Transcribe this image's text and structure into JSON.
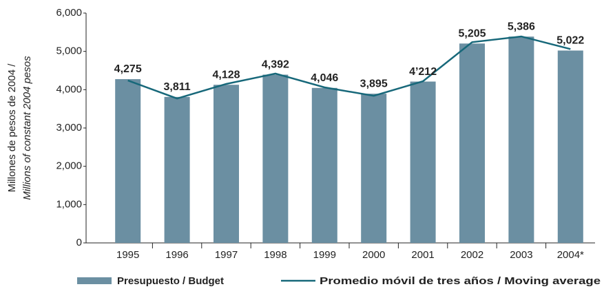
{
  "chart_data": {
    "type": "bar",
    "ylabel": [
      "Millones de pesos de 2004 /",
      "Millions of constant 2004 pesos"
    ],
    "categories": [
      "1995",
      "1996",
      "1997",
      "1998",
      "1999",
      "2000",
      "2001",
      "2002",
      "2003",
      "2004*"
    ],
    "series": [
      {
        "name": "Presupuesto / Budget",
        "type": "bar",
        "color": "#6b8fa2",
        "values": [
          4275,
          3811,
          4128,
          4392,
          4046,
          3895,
          4212,
          5205,
          5386,
          5022
        ],
        "value_labels": [
          "4,275",
          "3,811",
          "4,128",
          "4,392",
          "4,046",
          "3,895",
          "4’212",
          "5,205",
          "5,386",
          "5,022"
        ]
      },
      {
        "name": "Promedio móvil de tres años / Moving average",
        "type": "line",
        "color": "#17687a",
        "values": [
          4240,
          3770,
          4150,
          4420,
          4060,
          3840,
          4220,
          5240,
          5390,
          5060
        ]
      }
    ],
    "ylim": [
      0,
      6000
    ],
    "yticks": [
      0,
      {
        "value": 1000,
        "label": "1,000"
      },
      {
        "value": 2000,
        "label": "2,000"
      },
      {
        "value": 3000,
        "label": "3,000"
      },
      {
        "value": 4000,
        "label": "4,000"
      },
      {
        "value": 5000,
        "label": "5,000"
      },
      {
        "value": 6000,
        "label": "6,000"
      }
    ]
  }
}
